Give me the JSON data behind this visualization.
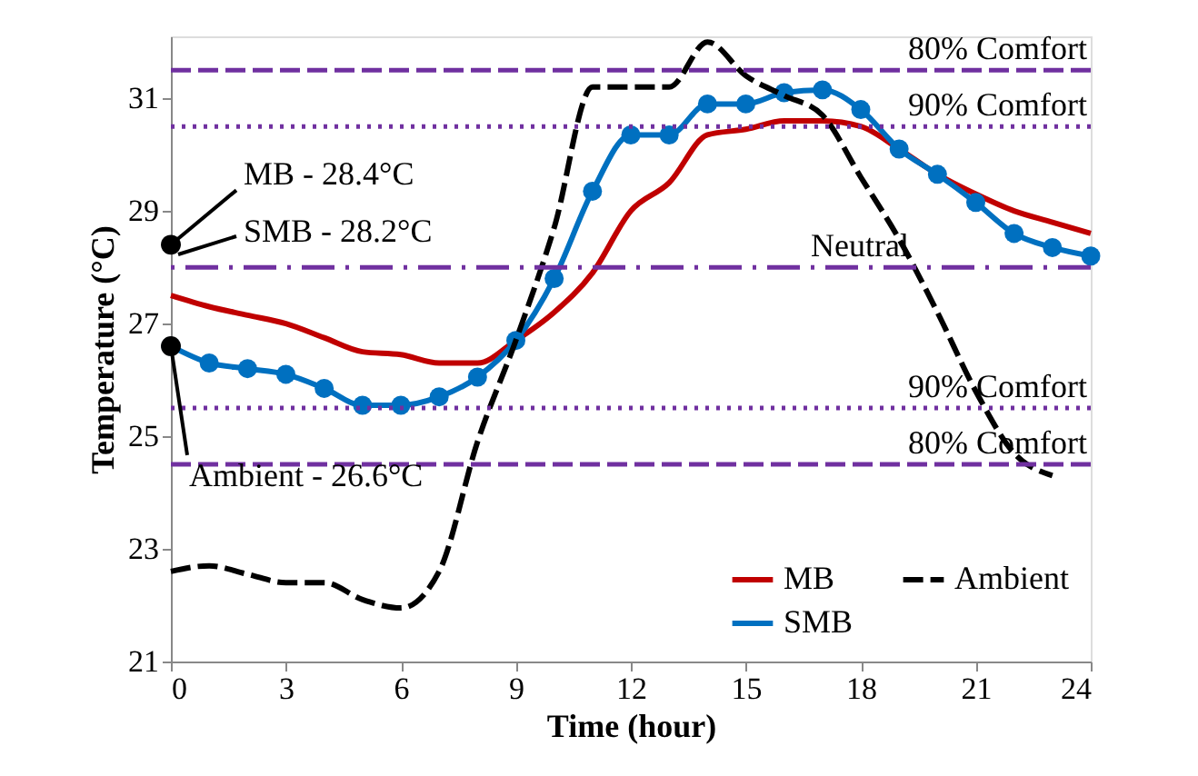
{
  "chart_data": {
    "type": "line",
    "xlabel": "Time (hour)",
    "ylabel": "Temperature (°C)",
    "x": [
      0,
      1,
      2,
      3,
      4,
      5,
      6,
      7,
      8,
      9,
      10,
      11,
      12,
      13,
      14,
      15,
      16,
      17,
      18,
      19,
      20,
      21,
      22,
      23,
      24
    ],
    "series": [
      {
        "name": "MB",
        "color": "#c00000",
        "line_style": "solid",
        "marker": "none",
        "values": [
          27.5,
          27.3,
          27.15,
          27.0,
          26.75,
          26.5,
          26.45,
          26.3,
          26.3,
          26.7,
          27.2,
          27.9,
          29.0,
          29.5,
          30.35,
          30.45,
          30.6,
          30.6,
          30.5,
          30.1,
          29.65,
          29.3,
          29.0,
          28.8,
          28.6
        ]
      },
      {
        "name": "SMB",
        "color": "#0070c0",
        "line_style": "solid",
        "marker": "circle",
        "values": [
          26.6,
          26.3,
          26.2,
          26.1,
          25.85,
          25.55,
          25.55,
          25.7,
          26.05,
          26.7,
          27.8,
          29.35,
          30.35,
          30.35,
          30.9,
          30.9,
          31.1,
          31.15,
          30.8,
          30.1,
          29.65,
          29.15,
          28.6,
          28.35,
          28.2
        ]
      },
      {
        "name": "Ambient",
        "color": "#000000",
        "line_style": "dashed",
        "marker": "none",
        "values": [
          22.6,
          22.7,
          22.55,
          22.4,
          22.4,
          22.1,
          21.95,
          22.6,
          24.9,
          26.7,
          28.7,
          31.2,
          31.2,
          31.2,
          32.0,
          31.4,
          31.05,
          30.7,
          29.6,
          28.5,
          27.2,
          25.8,
          24.7,
          24.3,
          null
        ]
      }
    ],
    "xlim": [
      0,
      24
    ],
    "xticks": [
      0,
      3,
      6,
      9,
      12,
      15,
      18,
      21,
      24
    ],
    "ylim": [
      21,
      32.1
    ],
    "yticks": [
      21,
      23,
      25,
      27,
      29,
      31
    ],
    "grid": false,
    "legend": "bottom right",
    "ref_lines": [
      {
        "axis": "y",
        "value": 31.5,
        "label": "80% Comfort",
        "color": "#7030a0",
        "line_style": "dashed"
      },
      {
        "axis": "y",
        "value": 30.5,
        "label": "90% Comfort",
        "color": "#7030a0",
        "line_style": "dotted"
      },
      {
        "axis": "y",
        "value": 28.0,
        "label": "Neutral",
        "color": "#7030a0",
        "line_style": "dashdot"
      },
      {
        "axis": "y",
        "value": 25.5,
        "label": "90% Comfort",
        "color": "#7030a0",
        "line_style": "dotted"
      },
      {
        "axis": "y",
        "value": 24.5,
        "label": "80% Comfort",
        "color": "#7030a0",
        "line_style": "dashed"
      }
    ],
    "annotations": [
      {
        "text": "MB - 28.4°C",
        "x": 0,
        "y": 28.4
      },
      "SMB - 28.2°C",
      {
        "text": "Ambient - 26.6°C",
        "x": 0,
        "y": 26.6
      }
    ]
  }
}
